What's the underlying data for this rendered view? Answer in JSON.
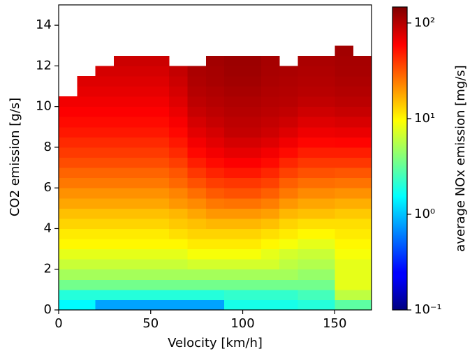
{
  "chart_data": {
    "type": "heatmap",
    "x_label": "Velocity [km/h]",
    "y_label": "CO2 emission [g/s]",
    "colorbar_label": "average NOx emission [mg/s]",
    "colormap": "jet",
    "color_scale": "log",
    "x_bins": [
      0,
      10,
      20,
      30,
      40,
      50,
      60,
      70,
      80,
      90,
      100,
      110,
      120,
      130,
      140,
      150,
      160,
      170
    ],
    "y_bins": [
      0,
      0.5,
      1,
      1.5,
      2,
      2.5,
      3,
      3.5,
      4,
      4.5,
      5,
      5.5,
      6,
      6.5,
      7,
      7.5,
      8,
      8.5,
      9,
      9.5,
      10,
      10.5,
      11,
      11.5,
      12,
      12.5,
      13
    ],
    "z": [
      [
        1.5,
        1.5,
        0.8,
        0.8,
        0.8,
        0.8,
        0.8,
        0.8,
        0.8,
        1.8,
        1.8,
        1.8,
        1.8,
        2,
        2,
        3,
        3
      ],
      [
        2,
        2,
        2,
        2,
        2,
        2,
        2,
        2,
        2,
        2.2,
        2.2,
        2.2,
        2.2,
        2.5,
        2.5,
        6,
        6
      ],
      [
        3.5,
        3.5,
        3.5,
        3.5,
        3.5,
        3.5,
        3.5,
        3.5,
        3.5,
        3.5,
        3.5,
        3.5,
        3.5,
        3.5,
        3.5,
        8,
        8
      ],
      [
        5,
        5,
        5,
        5,
        5,
        5,
        5,
        5,
        5,
        5,
        5,
        5,
        5,
        4.5,
        4.5,
        8,
        8
      ],
      [
        6.5,
        6.5,
        6.5,
        6.5,
        6.5,
        6.5,
        6.5,
        7,
        7,
        7,
        7,
        7,
        6,
        5.5,
        5.5,
        8,
        8
      ],
      [
        8,
        8,
        8,
        8,
        8,
        8,
        8,
        9,
        9,
        9,
        9,
        8,
        7,
        6.5,
        6.5,
        9,
        9
      ],
      [
        10,
        10,
        10,
        10,
        10,
        10,
        10,
        11,
        11,
        11,
        11,
        10,
        9,
        8,
        8,
        10,
        10
      ],
      [
        11,
        11,
        11,
        11,
        11,
        11,
        12,
        13,
        13,
        13,
        13,
        12,
        11,
        10,
        10,
        11,
        11
      ],
      [
        13,
        13,
        13,
        13,
        13,
        13,
        14,
        15,
        16,
        16,
        16,
        15,
        13,
        12,
        12,
        12,
        12
      ],
      [
        15,
        15,
        15,
        15,
        15,
        15,
        16,
        18,
        20,
        20,
        20,
        19,
        16,
        15,
        15,
        14,
        14
      ],
      [
        18,
        18,
        18,
        18,
        18,
        18,
        20,
        22,
        25,
        26,
        26,
        24,
        20,
        18,
        18,
        17,
        17
      ],
      [
        21,
        21,
        21,
        21,
        21,
        21,
        23,
        27,
        31,
        33,
        33,
        30,
        25,
        22,
        22,
        21,
        21
      ],
      [
        25,
        25,
        25,
        25,
        25,
        25,
        28,
        33,
        38,
        40,
        40,
        37,
        30,
        27,
        27,
        26,
        26
      ],
      [
        29,
        29,
        29,
        29,
        29,
        29,
        32,
        40,
        46,
        50,
        50,
        45,
        37,
        33,
        33,
        32,
        32
      ],
      [
        34,
        34,
        34,
        34,
        34,
        34,
        38,
        48,
        55,
        60,
        60,
        55,
        45,
        40,
        40,
        40,
        40
      ],
      [
        39,
        39,
        39,
        39,
        39,
        39,
        44,
        56,
        64,
        70,
        70,
        64,
        55,
        48,
        48,
        48,
        48
      ],
      [
        44,
        44,
        44,
        44,
        44,
        44,
        50,
        64,
        72,
        80,
        80,
        74,
        65,
        57,
        57,
        58,
        58
      ],
      [
        50,
        50,
        50,
        50,
        50,
        50,
        56,
        72,
        80,
        90,
        90,
        84,
        75,
        66,
        66,
        68,
        68
      ],
      [
        55,
        55,
        55,
        55,
        55,
        55,
        62,
        80,
        88,
        95,
        95,
        90,
        84,
        75,
        75,
        78,
        78
      ],
      [
        60,
        60,
        60,
        60,
        60,
        60,
        68,
        88,
        95,
        100,
        100,
        96,
        92,
        84,
        84,
        88,
        88
      ],
      [
        65,
        65,
        65,
        65,
        65,
        65,
        74,
        95,
        100,
        105,
        105,
        100,
        98,
        92,
        92,
        96,
        96
      ],
      [
        null,
        70,
        70,
        70,
        70,
        70,
        80,
        100,
        105,
        110,
        110,
        104,
        102,
        98,
        98,
        102,
        102
      ],
      [
        null,
        75,
        75,
        75,
        75,
        75,
        85,
        105,
        110,
        115,
        115,
        108,
        105,
        102,
        102,
        106,
        106
      ],
      [
        null,
        null,
        80,
        80,
        80,
        80,
        90,
        108,
        112,
        118,
        118,
        110,
        108,
        105,
        105,
        110,
        110
      ],
      [
        null,
        null,
        null,
        85,
        85,
        85,
        null,
        null,
        115,
        120,
        120,
        112,
        null,
        108,
        108,
        112,
        112
      ],
      [
        null,
        null,
        null,
        null,
        null,
        null,
        null,
        null,
        null,
        null,
        null,
        null,
        null,
        null,
        null,
        115,
        null
      ]
    ],
    "xlim": [
      0,
      170
    ],
    "xticks": [
      0,
      50,
      100,
      150
    ],
    "ylim": [
      0,
      15
    ],
    "yticks": [
      0,
      2,
      4,
      6,
      8,
      10,
      12,
      14
    ],
    "clim": [
      0.1,
      147
    ],
    "cticks": [
      {
        "value": 0.1,
        "label": "10⁻¹"
      },
      {
        "value": 1,
        "label": "10⁰"
      },
      {
        "value": 10,
        "label": "10¹"
      },
      {
        "value": 100,
        "label": "10²"
      }
    ]
  }
}
